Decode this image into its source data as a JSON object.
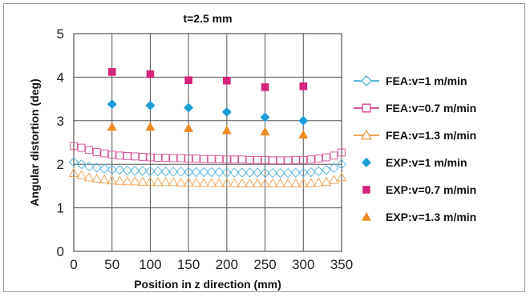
{
  "chart_data": {
    "type": "scatter",
    "title": "t=2.5 mm",
    "xlabel": "Position in z direction (mm)",
    "ylabel": "Angular distortion (deg)",
    "xlim": [
      0,
      350
    ],
    "ylim": [
      0,
      5
    ],
    "x_ticks": [
      0,
      50,
      100,
      150,
      200,
      250,
      300,
      350
    ],
    "y_ticks": [
      0,
      1,
      2,
      3,
      4,
      5
    ],
    "grid": true,
    "legend_position": "right",
    "series": [
      {
        "name": "FEA:v=1 m/min",
        "marker": "diamond-open",
        "color": "#5cb8dc",
        "x": [
          0,
          10,
          20,
          30,
          40,
          50,
          60,
          70,
          80,
          90,
          100,
          110,
          120,
          130,
          140,
          150,
          160,
          170,
          180,
          190,
          200,
          210,
          220,
          230,
          240,
          250,
          260,
          270,
          280,
          290,
          300,
          310,
          320,
          330,
          340,
          350
        ],
        "y": [
          2.05,
          2.0,
          1.95,
          1.92,
          1.9,
          1.88,
          1.87,
          1.86,
          1.85,
          1.85,
          1.84,
          1.84,
          1.83,
          1.83,
          1.83,
          1.82,
          1.82,
          1.82,
          1.82,
          1.82,
          1.81,
          1.81,
          1.81,
          1.81,
          1.81,
          1.8,
          1.8,
          1.8,
          1.8,
          1.81,
          1.81,
          1.82,
          1.84,
          1.87,
          1.92,
          2.0
        ]
      },
      {
        "name": "FEA:v=0.7 m/min",
        "marker": "square-open",
        "color": "#d7559b",
        "x": [
          0,
          10,
          20,
          30,
          40,
          50,
          60,
          70,
          80,
          90,
          100,
          110,
          120,
          130,
          140,
          150,
          160,
          170,
          180,
          190,
          200,
          210,
          220,
          230,
          240,
          250,
          260,
          270,
          280,
          290,
          300,
          310,
          320,
          330,
          340,
          350
        ],
        "y": [
          2.42,
          2.38,
          2.33,
          2.28,
          2.25,
          2.22,
          2.2,
          2.19,
          2.18,
          2.17,
          2.16,
          2.15,
          2.15,
          2.14,
          2.14,
          2.13,
          2.13,
          2.12,
          2.12,
          2.12,
          2.11,
          2.11,
          2.11,
          2.1,
          2.1,
          2.1,
          2.09,
          2.09,
          2.09,
          2.1,
          2.1,
          2.11,
          2.13,
          2.16,
          2.2,
          2.27
        ]
      },
      {
        "name": "FEA:v=1.3 m/min",
        "marker": "triangle-open",
        "color": "#f0a75c",
        "x": [
          0,
          10,
          20,
          30,
          40,
          50,
          60,
          70,
          80,
          90,
          100,
          110,
          120,
          130,
          140,
          150,
          160,
          170,
          180,
          190,
          200,
          210,
          220,
          230,
          240,
          250,
          260,
          270,
          280,
          290,
          300,
          310,
          320,
          330,
          340,
          350
        ],
        "y": [
          1.8,
          1.75,
          1.7,
          1.67,
          1.65,
          1.63,
          1.62,
          1.61,
          1.61,
          1.6,
          1.6,
          1.59,
          1.59,
          1.59,
          1.58,
          1.58,
          1.58,
          1.57,
          1.57,
          1.57,
          1.57,
          1.57,
          1.56,
          1.56,
          1.56,
          1.56,
          1.56,
          1.56,
          1.56,
          1.56,
          1.56,
          1.57,
          1.58,
          1.6,
          1.64,
          1.7
        ]
      },
      {
        "name": "EXP:v=1 m/min",
        "marker": "diamond",
        "color": "#1e9ed6",
        "x": [
          50,
          100,
          150,
          200,
          250,
          300
        ],
        "y": [
          3.38,
          3.35,
          3.3,
          3.2,
          3.08,
          3.0
        ]
      },
      {
        "name": "EXP:v=0.7 m/min",
        "marker": "square",
        "color": "#d6247c",
        "x": [
          50,
          100,
          150,
          200,
          250,
          300
        ],
        "y": [
          4.12,
          4.07,
          3.93,
          3.92,
          3.77,
          3.79
        ]
      },
      {
        "name": "EXP:v=1.3 m/min",
        "marker": "triangle",
        "color": "#ef8a22",
        "x": [
          50,
          100,
          150,
          200,
          250,
          300
        ],
        "y": [
          2.86,
          2.86,
          2.83,
          2.78,
          2.75,
          2.68
        ]
      }
    ]
  }
}
